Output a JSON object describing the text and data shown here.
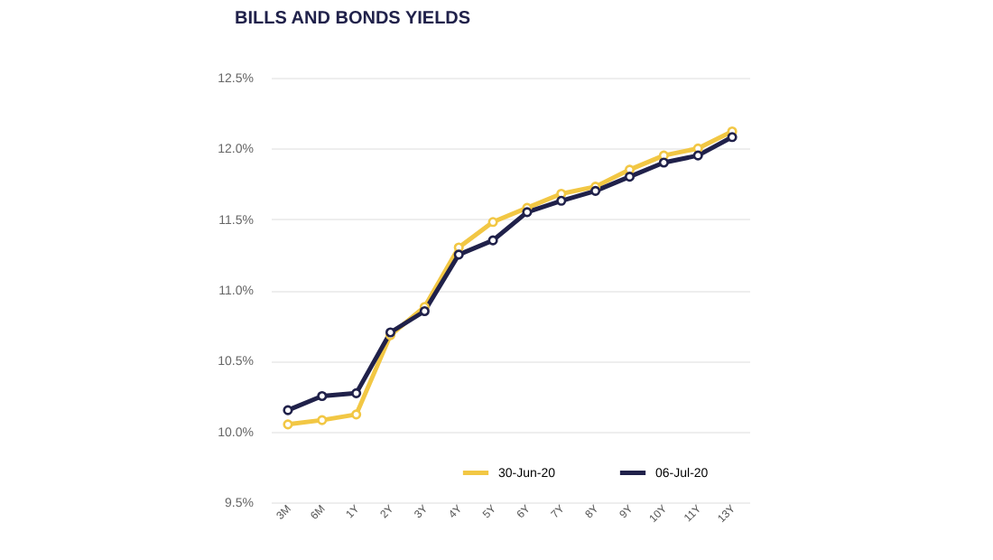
{
  "chart_data": {
    "type": "line",
    "title": "BILLS AND BONDS YIELDS",
    "categories": [
      "3M",
      "6M",
      "1Y",
      "2Y",
      "3Y",
      "4Y",
      "5Y",
      "6Y",
      "7Y",
      "8Y",
      "9Y",
      "10Y",
      "11Y",
      "13Y"
    ],
    "series": [
      {
        "name": "30-Jun-20",
        "color": "#f2c744",
        "values": [
          10.05,
          10.08,
          10.12,
          10.68,
          10.88,
          11.3,
          11.48,
          11.58,
          11.68,
          11.73,
          11.85,
          11.95,
          12.0,
          12.12
        ]
      },
      {
        "name": "06-Jul-20",
        "color": "#20214a",
        "values": [
          10.15,
          10.25,
          10.27,
          10.7,
          10.85,
          11.25,
          11.35,
          11.55,
          11.63,
          11.7,
          11.8,
          11.9,
          11.95,
          12.08
        ]
      }
    ],
    "ylim": [
      9.5,
      12.5
    ],
    "yticks": [
      {
        "value": 9.5,
        "label": "9.5%"
      },
      {
        "value": 10,
        "label": "10.0%"
      },
      {
        "value": 10.5,
        "label": "10.5%"
      },
      {
        "value": 11,
        "label": "11.0%"
      },
      {
        "value": 11.5,
        "label": "11.5%"
      },
      {
        "value": 12,
        "label": "12.0%"
      },
      {
        "value": 12.5,
        "label": "12.5%"
      }
    ],
    "grid": "y",
    "legend": "bottom right",
    "marker": "circle",
    "line_style": "solid"
  }
}
